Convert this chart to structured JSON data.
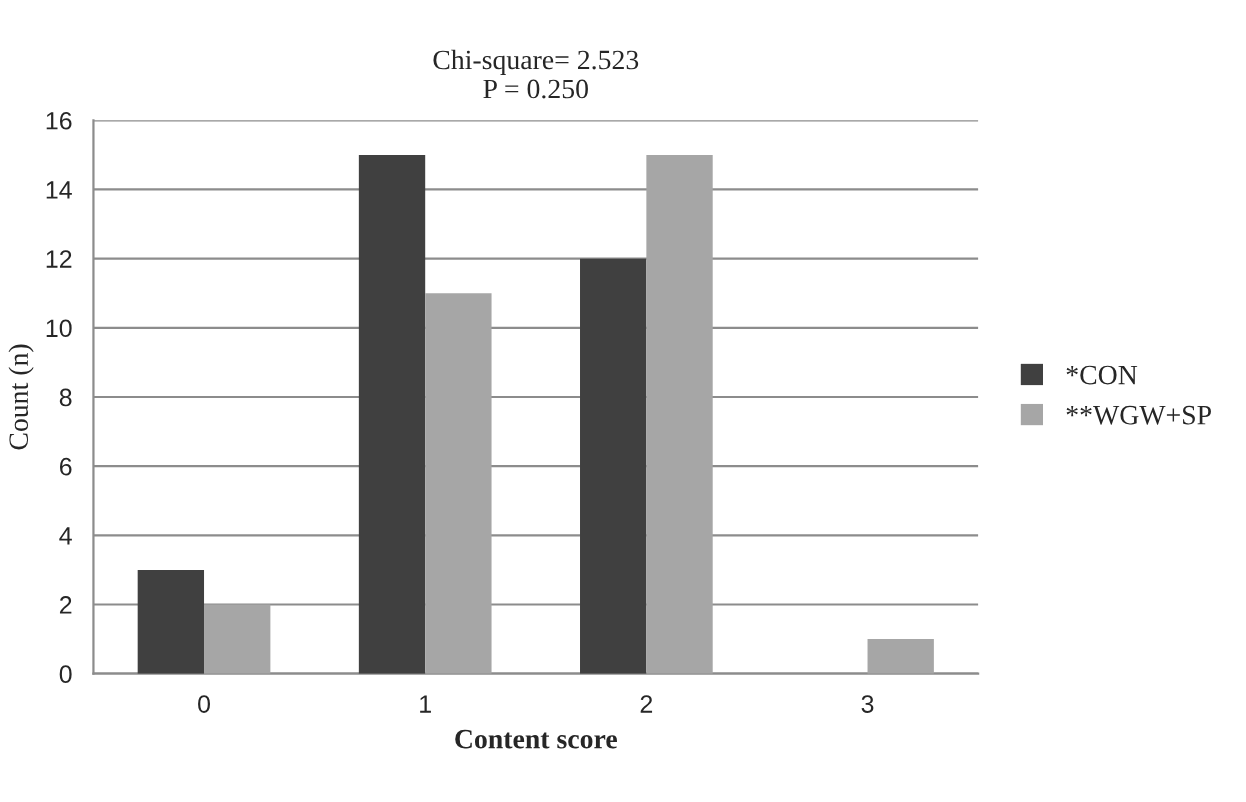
{
  "chart_data": {
    "type": "bar",
    "title": "Chi-square= 2.523\nP = 0.250",
    "xlabel": "Content score",
    "ylabel": "Count (n)",
    "categories": [
      "0",
      "1",
      "2",
      "3"
    ],
    "series": [
      {
        "name": "*CON",
        "color": "#404040",
        "values": [
          3,
          15,
          12,
          0
        ]
      },
      {
        "name": "**WGW+SP",
        "color": "#a6a6a6",
        "values": [
          2,
          11,
          15,
          1
        ]
      }
    ],
    "ylim": [
      0,
      16
    ],
    "yticks": [
      0,
      2,
      4,
      6,
      8,
      10,
      12,
      14,
      16
    ],
    "grid": "y",
    "legend": "right"
  }
}
